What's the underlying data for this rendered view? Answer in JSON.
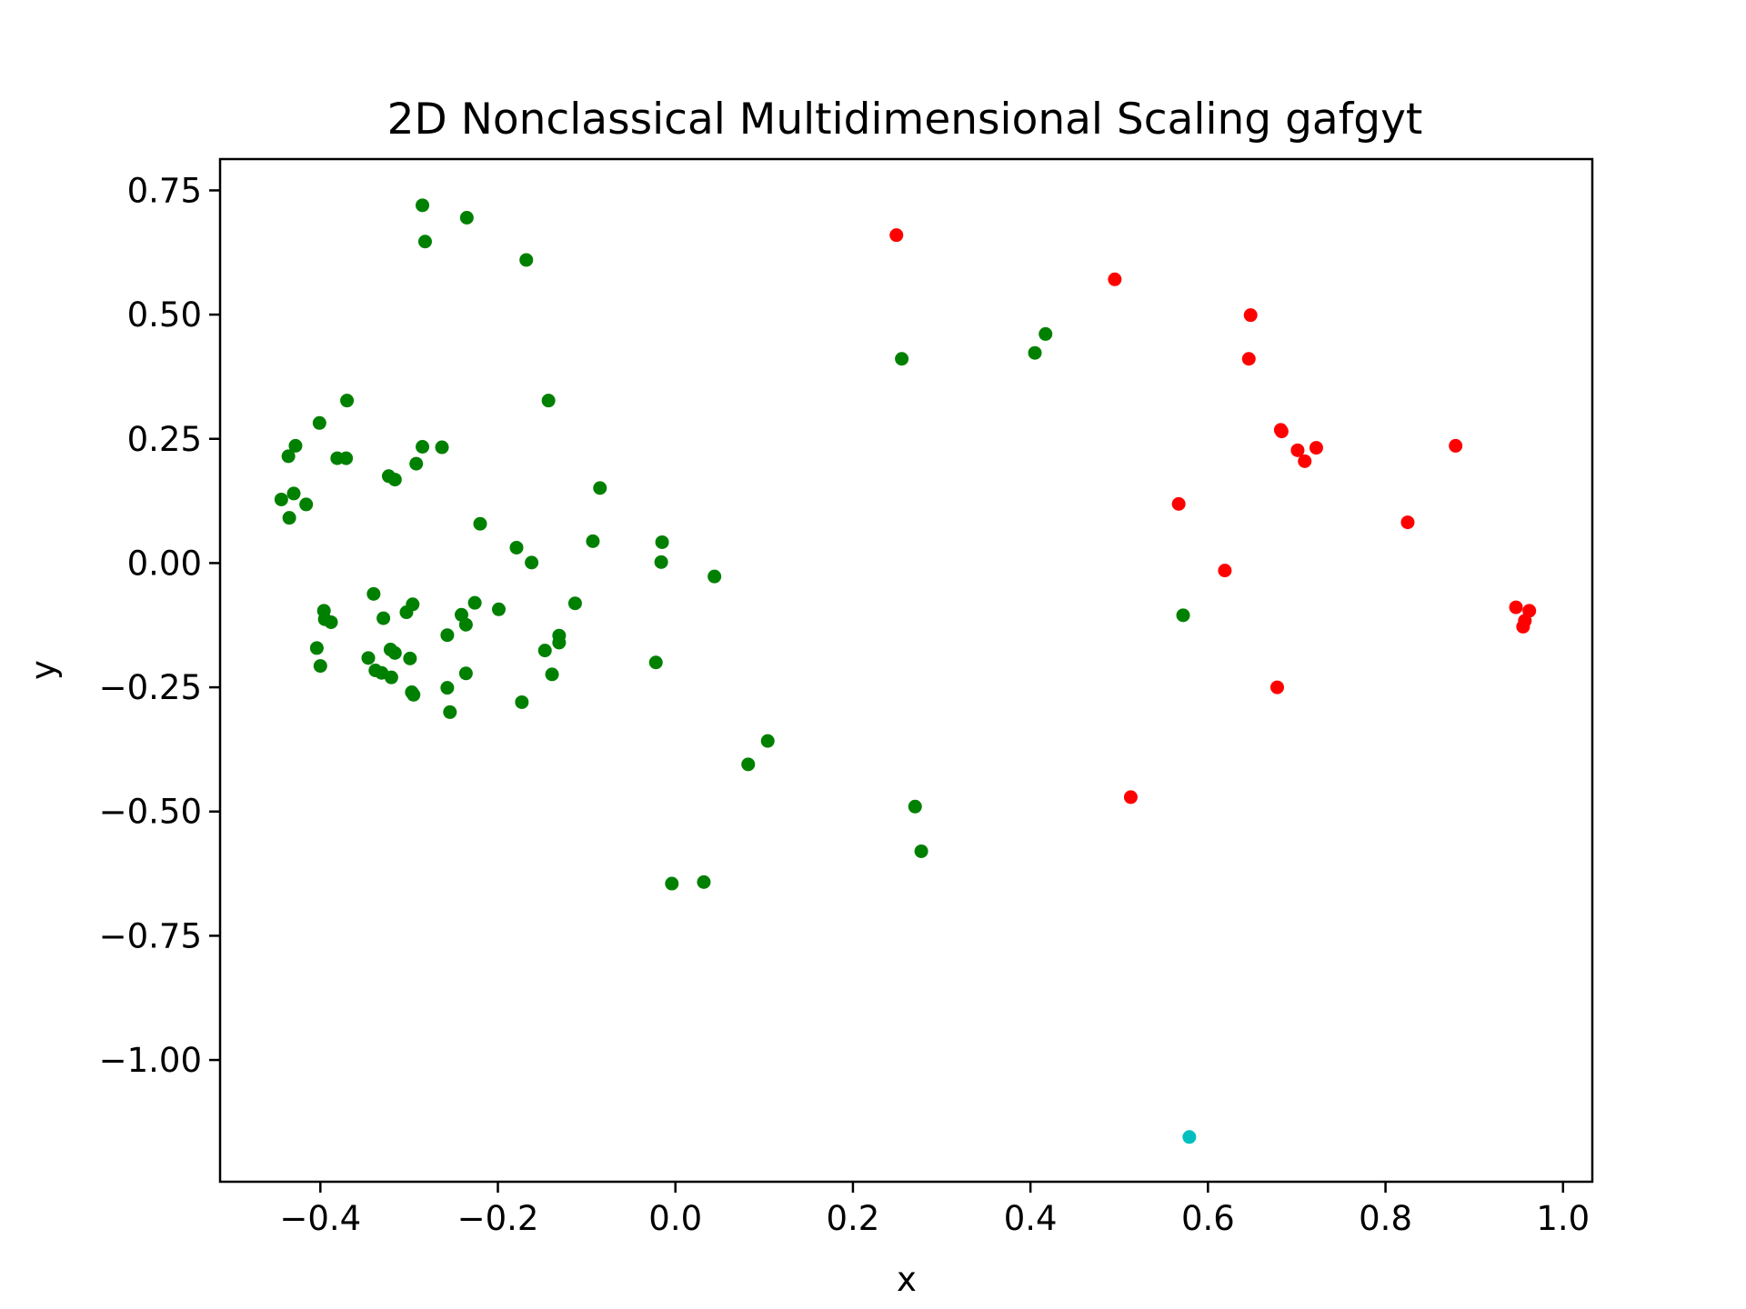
{
  "chart_data": {
    "type": "scatter",
    "title": "2D Nonclassical Multidimensional Scaling gafgyt",
    "xlabel": "x",
    "ylabel": "y",
    "xlim": [
      -0.513,
      1.033
    ],
    "ylim": [
      -1.245,
      0.813
    ],
    "xticks": [
      -0.4,
      -0.2,
      0.0,
      0.2,
      0.4,
      0.6,
      0.8,
      1.0
    ],
    "xtick_labels": [
      "−0.4",
      "−0.2",
      "0.0",
      "0.2",
      "0.4",
      "0.6",
      "0.8",
      "1.0"
    ],
    "yticks": [
      0.75,
      0.5,
      0.25,
      0.0,
      -0.25,
      -0.5,
      -0.75,
      -1.0
    ],
    "ytick_labels": [
      "0.75",
      "0.50",
      "0.25",
      "0.00",
      "−0.25",
      "−0.50",
      "−0.75",
      "−1.00"
    ],
    "grid": false,
    "series": [
      {
        "color": "#008000",
        "points": [
          [
            -0.285,
            0.72
          ],
          [
            -0.235,
            0.695
          ],
          [
            -0.282,
            0.647
          ],
          [
            -0.168,
            0.61
          ],
          [
            -0.37,
            0.327
          ],
          [
            -0.143,
            0.327
          ],
          [
            -0.401,
            0.282
          ],
          [
            -0.428,
            0.236
          ],
          [
            -0.285,
            0.234
          ],
          [
            -0.263,
            0.233
          ],
          [
            -0.436,
            0.215
          ],
          [
            -0.381,
            0.211
          ],
          [
            -0.371,
            0.211
          ],
          [
            -0.292,
            0.2
          ],
          [
            -0.323,
            0.175
          ],
          [
            -0.316,
            0.168
          ],
          [
            -0.085,
            0.151
          ],
          [
            -0.43,
            0.14
          ],
          [
            -0.444,
            0.128
          ],
          [
            -0.416,
            0.118
          ],
          [
            -0.435,
            0.091
          ],
          [
            -0.22,
            0.079
          ],
          [
            -0.093,
            0.044
          ],
          [
            -0.015,
            0.042
          ],
          [
            -0.179,
            0.031
          ],
          [
            -0.162,
            0.001
          ],
          [
            -0.016,
            0.002
          ],
          [
            0.044,
            -0.027
          ],
          [
            -0.34,
            -0.062
          ],
          [
            -0.296,
            -0.083
          ],
          [
            -0.226,
            -0.08
          ],
          [
            -0.113,
            -0.081
          ],
          [
            -0.199,
            -0.093
          ],
          [
            -0.396,
            -0.096
          ],
          [
            -0.303,
            -0.099
          ],
          [
            -0.241,
            -0.104
          ],
          [
            -0.329,
            -0.111
          ],
          [
            -0.395,
            -0.113
          ],
          [
            -0.388,
            -0.119
          ],
          [
            -0.236,
            -0.124
          ],
          [
            -0.131,
            -0.146
          ],
          [
            -0.257,
            -0.145
          ],
          [
            -0.131,
            -0.16
          ],
          [
            -0.147,
            -0.176
          ],
          [
            -0.404,
            -0.171
          ],
          [
            -0.321,
            -0.174
          ],
          [
            -0.316,
            -0.181
          ],
          [
            -0.346,
            -0.191
          ],
          [
            -0.299,
            -0.192
          ],
          [
            -0.022,
            -0.2
          ],
          [
            -0.4,
            -0.207
          ],
          [
            -0.338,
            -0.216
          ],
          [
            -0.331,
            -0.221
          ],
          [
            -0.236,
            -0.222
          ],
          [
            -0.139,
            -0.224
          ],
          [
            -0.32,
            -0.23
          ],
          [
            -0.297,
            -0.26
          ],
          [
            -0.295,
            -0.265
          ],
          [
            -0.257,
            -0.251
          ],
          [
            -0.173,
            -0.28
          ],
          [
            -0.254,
            -0.3
          ],
          [
            0.104,
            -0.358
          ],
          [
            0.082,
            -0.405
          ],
          [
            0.572,
            -0.105
          ],
          [
            0.27,
            -0.49
          ],
          [
            0.277,
            -0.58
          ],
          [
            -0.004,
            -0.645
          ],
          [
            0.032,
            -0.642
          ],
          [
            0.255,
            0.411
          ],
          [
            0.405,
            0.423
          ],
          [
            0.417,
            0.461
          ]
        ]
      },
      {
        "color": "#ff0000",
        "points": [
          [
            0.249,
            0.66
          ],
          [
            0.495,
            0.571
          ],
          [
            0.648,
            0.499
          ],
          [
            0.646,
            0.411
          ],
          [
            0.682,
            0.268
          ],
          [
            0.683,
            0.265
          ],
          [
            0.701,
            0.227
          ],
          [
            0.709,
            0.205
          ],
          [
            0.722,
            0.232
          ],
          [
            0.879,
            0.236
          ],
          [
            0.567,
            0.119
          ],
          [
            0.825,
            0.082
          ],
          [
            0.619,
            -0.015
          ],
          [
            0.947,
            -0.089
          ],
          [
            0.962,
            -0.096
          ],
          [
            0.957,
            -0.116
          ],
          [
            0.955,
            -0.128
          ],
          [
            0.678,
            -0.25
          ],
          [
            0.513,
            -0.471
          ]
        ]
      },
      {
        "color": "#00bfbf",
        "points": [
          [
            0.579,
            -1.155
          ]
        ]
      }
    ]
  }
}
